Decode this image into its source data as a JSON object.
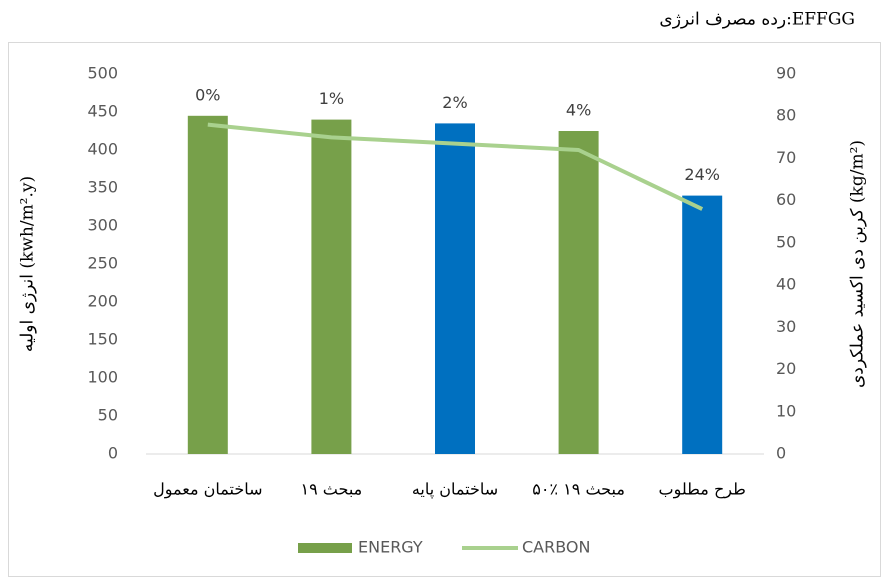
{
  "chart_data": {
    "type": "bar",
    "title": "رده مصرف انرژی:EFFGG",
    "categories": [
      "ساختمان معمول",
      "مبحث ۱۹",
      "ساختمان پایه",
      "۵۰٪ مبحث ۱۹",
      "طرح مطلوب"
    ],
    "series": [
      {
        "name": "ENERGY",
        "type": "bar",
        "color": "#77a04a",
        "colors": [
          "#77a04a",
          "#77a04a",
          "#0070c0",
          "#77a04a",
          "#0070c0"
        ],
        "values": [
          445,
          440,
          435,
          425,
          340
        ]
      },
      {
        "name": "CARBON",
        "type": "line",
        "axis": "y2",
        "color": "#a9d18e",
        "values": [
          78,
          75,
          73.5,
          72,
          58
        ]
      }
    ],
    "annotations": [
      "0%",
      "1%",
      "2%",
      "4%",
      "24%"
    ],
    "y_label": "انرژی اولیه (kwh/m².y)",
    "y2_label": "کربن دی اکسید عملکردی (kg/m²)",
    "ylim": [
      0,
      500
    ],
    "yticks": [
      0,
      50,
      100,
      150,
      200,
      250,
      300,
      350,
      400,
      450,
      500
    ],
    "y2lim": [
      0,
      90
    ],
    "y2ticks": [
      0,
      10,
      20,
      30,
      40,
      50,
      60,
      70,
      80,
      90
    ],
    "grid": false,
    "legend": "bottom"
  }
}
